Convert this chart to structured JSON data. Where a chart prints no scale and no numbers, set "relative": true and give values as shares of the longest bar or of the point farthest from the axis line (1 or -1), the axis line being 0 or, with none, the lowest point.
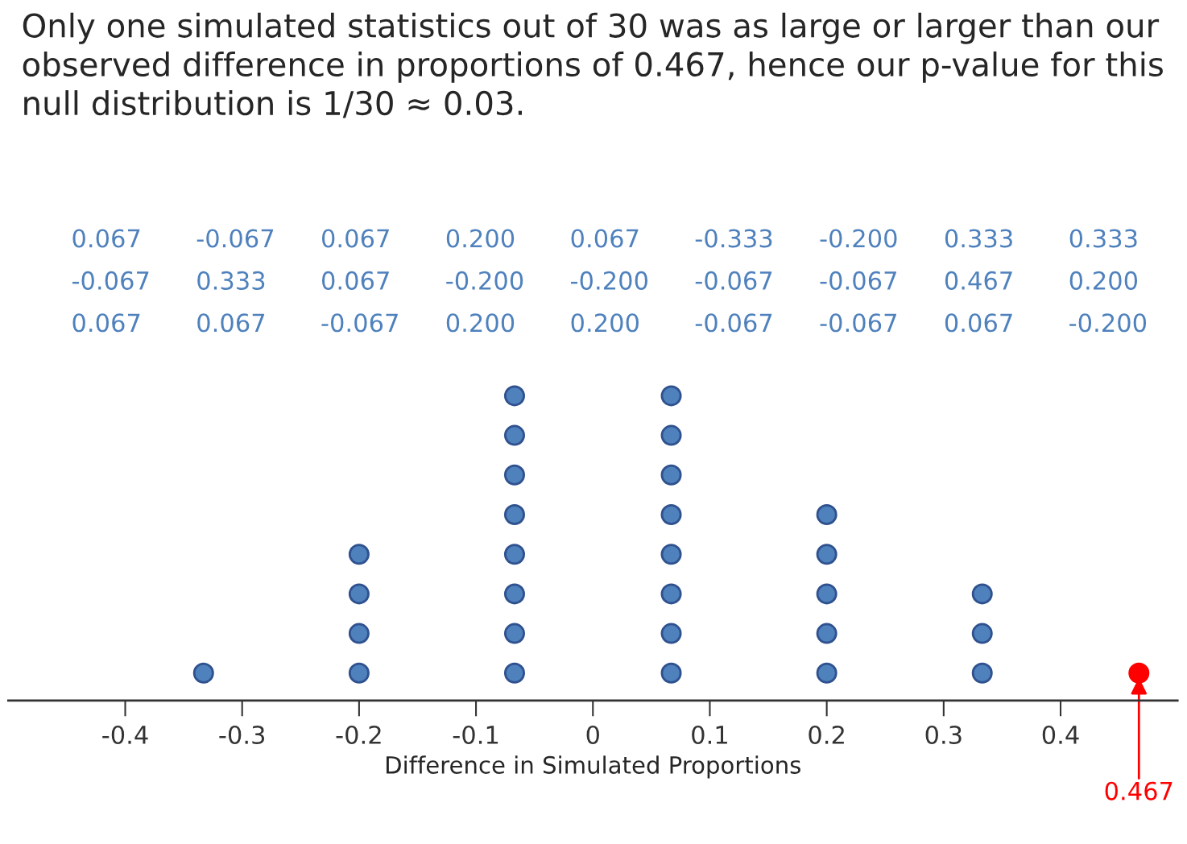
{
  "chart_data": {
    "type": "scatter",
    "title": "Only one simulated statistics out of 30 was as large or larger than our observed difference in proportions of 0.467, hence our p-value for this null distribution is 1/30 ≈ 0.03.",
    "xlabel": "Difference in Simulated Proportions",
    "relative": true,
    "marker": "circle",
    "grid": false,
    "legend": false,
    "xlim": [
      -0.5,
      0.5
    ],
    "xticks": [
      -0.4,
      -0.3,
      -0.2,
      -0.1,
      0,
      0.1,
      0.2,
      0.3,
      0.4
    ],
    "series": [
      {
        "color": "#4f81bd",
        "x": [
          -0.333,
          -0.2,
          -0.2,
          -0.2,
          -0.2,
          -0.067,
          -0.067,
          -0.067,
          -0.067,
          -0.067,
          -0.067,
          -0.067,
          -0.067,
          0.067,
          0.067,
          0.067,
          0.067,
          0.067,
          0.067,
          0.067,
          0.067,
          0.2,
          0.2,
          0.2,
          0.2,
          0.2,
          0.333,
          0.333,
          0.333
        ],
        "values": [
          0.09,
          0.09,
          0.22,
          0.35,
          0.48,
          0.09,
          0.22,
          0.35,
          0.48,
          0.61,
          0.74,
          0.87,
          1.0,
          0.09,
          0.22,
          0.35,
          0.48,
          0.61,
          0.74,
          0.87,
          1.0,
          0.09,
          0.22,
          0.35,
          0.48,
          0.61,
          0.09,
          0.22,
          0.35
        ]
      },
      {
        "color": "#ff0000",
        "x": [
          0.467
        ],
        "values": [
          0.09
        ]
      }
    ],
    "annotations": [
      "0.067",
      "-0.067",
      "0.067",
      "0.200",
      "0.067",
      "-0.333",
      "-0.200",
      "0.333",
      "0.333",
      "-0.067",
      "0.333",
      "0.067",
      "-0.200",
      "-0.200",
      "-0.067",
      "-0.067",
      "0.467",
      "0.200",
      "0.067",
      "0.067",
      "-0.067",
      "0.200",
      "0.200",
      "-0.067",
      "-0.067",
      "0.067",
      "-0.200",
      {
        "text": "0.467",
        "x": 0.467,
        "y": 0.09
      }
    ]
  }
}
